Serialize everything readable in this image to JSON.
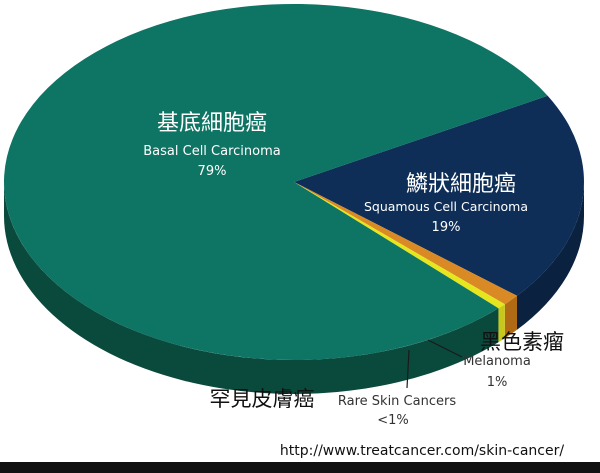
{
  "chart_data": {
    "type": "pie",
    "style": "3d",
    "title": "",
    "slices": [
      {
        "name_zh": "基底細胞癌",
        "name_en": "Basal Cell Carcinoma",
        "value": 79,
        "value_label": "79%",
        "top_color": "#0e7463",
        "side_color": "#0a4a3d"
      },
      {
        "name_zh": "鱗狀細胞癌",
        "name_en": "Squamous Cell Carcinoma",
        "value": 19,
        "value_label": "19%",
        "top_color": "#0e2e58",
        "side_color": "#0a2140"
      },
      {
        "name_zh": "黑色素瘤",
        "name_en": "Melanoma",
        "value": 1,
        "value_label": "1%",
        "top_color": "#d98a24",
        "side_color": "#b06a14"
      },
      {
        "name_zh": "罕見皮膚癌",
        "name_en": "Rare Skin Cancers",
        "value": 0.5,
        "value_label": "<1%",
        "top_color": "#e6e61e",
        "side_color": "#c8c81a"
      }
    ]
  },
  "source_url": "http://www.treatcancer.com/skin-cancer/"
}
